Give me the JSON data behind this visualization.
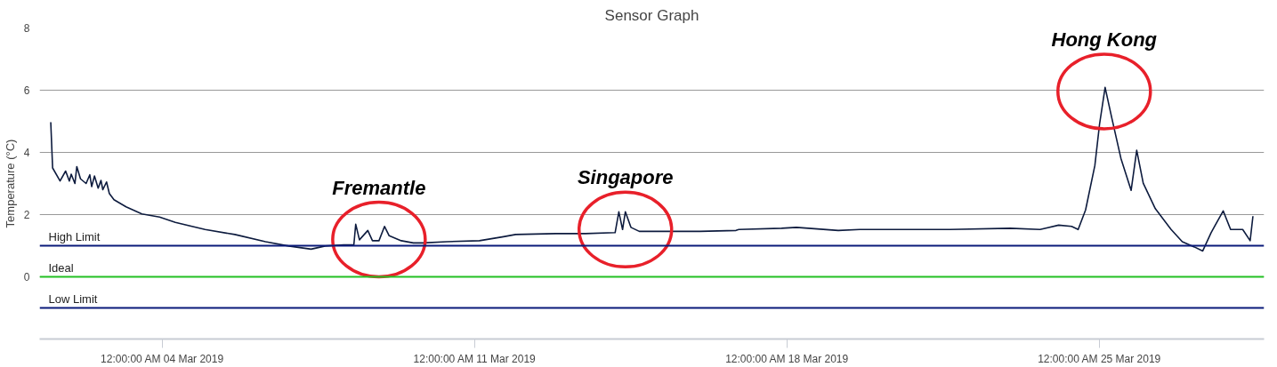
{
  "chart_data": {
    "type": "line",
    "title": "Sensor Graph",
    "ylabel": "Temperature (°C)",
    "x": [
      "2019-03-01T12:00",
      "2019-03-01T13:00",
      "2019-03-01T17:00",
      "2019-03-01T20:00",
      "2019-03-01T22:00",
      "2019-03-01T23:00",
      "2019-03-02T01:00",
      "2019-03-02T02:00",
      "2019-03-02T04:00",
      "2019-03-02T07:00",
      "2019-03-02T09:00",
      "2019-03-02T10:00",
      "2019-03-02T11:30",
      "2019-03-02T13:30",
      "2019-03-02T15:00",
      "2019-03-02T16:00",
      "2019-03-02T18:00",
      "2019-03-02T19:30",
      "2019-03-02T22:00",
      "2019-03-03T04:30",
      "2019-03-03T13:00",
      "2019-03-03T22:30",
      "2019-03-04T07:00",
      "2019-03-04T23:00",
      "2019-03-05T15:00",
      "2019-03-06T07:30",
      "2019-03-06T20:00",
      "2019-03-07T08:00",
      "2019-03-07T15:30",
      "2019-03-08T01:30",
      "2019-03-08T07:00",
      "2019-03-08T08:00",
      "2019-03-08T10:00",
      "2019-03-08T14:30",
      "2019-03-08T17:00",
      "2019-03-08T20:30",
      "2019-03-08T23:30",
      "2019-03-09T02:00",
      "2019-03-09T08:30",
      "2019-03-09T15:00",
      "2019-03-09T20:00",
      "2019-03-10T09:00",
      "2019-03-11T02:30",
      "2019-03-11T15:30",
      "2019-03-11T22:00",
      "2019-03-12T19:30",
      "2019-03-13T11:30",
      "2019-03-14T03:30",
      "2019-03-14T05:30",
      "2019-03-14T07:30",
      "2019-03-14T09:00",
      "2019-03-14T12:00",
      "2019-03-14T16:30",
      "2019-03-15T12:00",
      "2019-03-16T01:00",
      "2019-03-16T20:30",
      "2019-03-16T22:00",
      "2019-03-17T21:00",
      "2019-03-18T05:00",
      "2019-03-19T03:30",
      "2019-03-19T15:00",
      "2019-03-21T15:30",
      "2019-03-23T00:00",
      "2019-03-23T16:00",
      "2019-03-24T02:00",
      "2019-03-24T09:00",
      "2019-03-24T12:30",
      "2019-03-24T16:30",
      "2019-03-24T21:30",
      "2019-03-25T00:00",
      "2019-03-25T03:00",
      "2019-03-25T06:30",
      "2019-03-25T11:30",
      "2019-03-25T17:00",
      "2019-03-25T20:00",
      "2019-03-25T23:30",
      "2019-03-26T06:00",
      "2019-03-26T14:30",
      "2019-03-26T20:30",
      "2019-03-27T03:00",
      "2019-03-27T07:30",
      "2019-03-27T12:00",
      "2019-03-27T18:30",
      "2019-03-27T22:30",
      "2019-03-28T05:00",
      "2019-03-28T09:00",
      "2019-03-28T10:30"
    ],
    "series": [
      {
        "color": "#0d1b3e",
        "values": [
          4.97,
          3.5,
          3.08,
          3.4,
          3.08,
          3.3,
          3.0,
          3.54,
          3.15,
          3.0,
          3.28,
          2.9,
          3.24,
          2.85,
          3.1,
          2.8,
          3.05,
          2.68,
          2.48,
          2.25,
          2.02,
          1.92,
          1.75,
          1.52,
          1.36,
          1.13,
          0.99,
          0.89,
          0.99,
          1.03,
          1.03,
          1.69,
          1.19,
          1.49,
          1.16,
          1.16,
          1.62,
          1.32,
          1.16,
          1.09,
          1.09,
          1.13,
          1.16,
          1.29,
          1.36,
          1.39,
          1.39,
          1.42,
          2.09,
          1.52,
          2.09,
          1.59,
          1.46,
          1.46,
          1.46,
          1.49,
          1.52,
          1.56,
          1.59,
          1.49,
          1.52,
          1.52,
          1.56,
          1.52,
          1.66,
          1.62,
          1.52,
          2.15,
          3.58,
          4.9,
          6.09,
          5.13,
          3.81,
          2.78,
          4.07,
          3.01,
          2.19,
          1.52,
          1.13,
          0.96,
          0.83,
          1.42,
          2.12,
          1.52,
          1.52,
          1.16,
          1.95
        ]
      }
    ],
    "xlim": [
      "2019-03-01T06:00",
      "2019-03-28T16:30"
    ],
    "xticks": [
      {
        "value": "2019-03-04",
        "label": "12:00:00 AM 04 Mar 2019"
      },
      {
        "value": "2019-03-11",
        "label": "12:00:00 AM 11 Mar 2019"
      },
      {
        "value": "2019-03-18",
        "label": "12:00:00 AM 18 Mar 2019"
      },
      {
        "value": "2019-03-25",
        "label": "12:00:00 AM 25 Mar 2019"
      }
    ],
    "ylim": [
      -2,
      8
    ],
    "yticks": [
      0,
      2,
      4,
      6,
      8
    ],
    "grid": "y",
    "line_style": "solid",
    "ref_lines": [
      {
        "axis": "y",
        "value": 1,
        "label": "High Limit",
        "color": "#0a1a7a"
      },
      {
        "axis": "y",
        "value": 0,
        "label": "Ideal",
        "color": "#22c022"
      },
      {
        "axis": "y",
        "value": -1,
        "label": "Low Limit",
        "color": "#0a1a7a"
      }
    ],
    "annotations": [
      {
        "text": "Fremantle",
        "x": "2019-03-08T20:30",
        "y": 1.2
      },
      {
        "text": "Singapore",
        "x": "2019-03-14T09:00",
        "y": 1.52
      },
      {
        "text": "Hong Kong",
        "x": "2019-03-25T02:30",
        "y": 5.96
      }
    ]
  }
}
